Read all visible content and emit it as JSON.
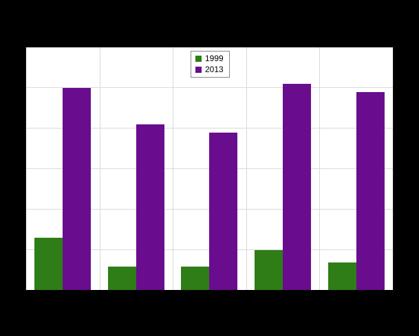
{
  "chart_data": {
    "type": "bar",
    "title": "",
    "xlabel": "",
    "ylabel": "",
    "categories": [
      "",
      "",
      "",
      "",
      ""
    ],
    "series": [
      {
        "name": "1999",
        "color": "#2e7d16",
        "values": [
          13,
          6,
          6,
          10,
          7
        ]
      },
      {
        "name": "2013",
        "color": "#690c8e",
        "values": [
          50,
          41,
          39,
          51,
          49
        ]
      }
    ],
    "ylim": [
      0,
      60
    ],
    "y_grid_step": 10,
    "grid": true,
    "legend_position": "top-center",
    "plot_background": "#ffffff",
    "page_background": "#000000",
    "gridline_color": "#d9d9d9"
  },
  "legend": {
    "items": [
      {
        "label": "1999",
        "color": "#2e7d16"
      },
      {
        "label": "2013",
        "color": "#690c8e"
      }
    ]
  }
}
